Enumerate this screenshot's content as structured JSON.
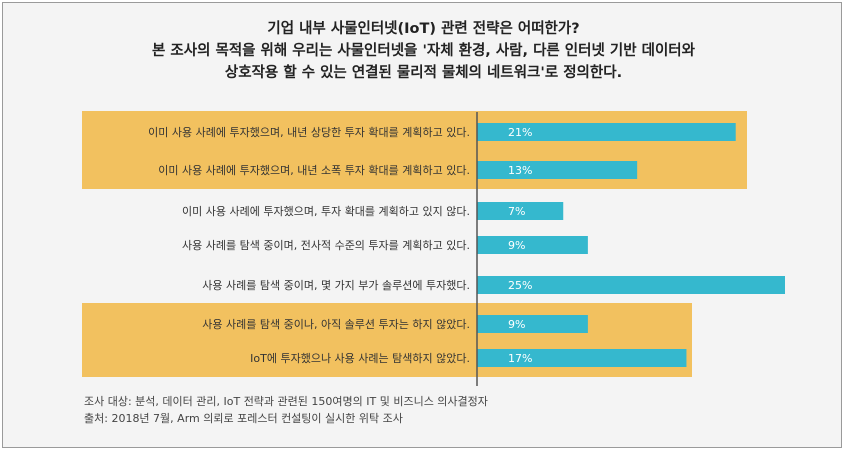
{
  "title_lines": [
    "기업 내부 사물인터넷(IoT) 관련 전략은 어떠한가?",
    "본 조사의 목적을 위해 우리는 사물인터넷을 '자체 환경, 사람, 다른 인터넷 기반 데이터와",
    "상호작용 할 수 있는 연결된 물리적 물체의 네트워크'로 정의한다."
  ],
  "chart_data": {
    "type": "bar",
    "orientation": "horizontal",
    "categories": [
      "이미 사용 사례에 투자했으며, 내년 상당한 투자 확대를 계획하고 있다.",
      "이미 사용 사례에 투자했으며, 내년 소폭 투자 확대를 계획하고 있다.",
      "이미 사용 사례에 투자했으며, 투자 확대를 계획하고 있지 않다.",
      "사용 사례를 탐색 중이며, 전사적 수준의 투자를 계획하고 있다.",
      "사용 사례를 탐색 중이며, 몇 가지 부가 솔루션에 투자했다.",
      "사용 사례를 탐색 중이나, 아직 솔루션 투자는 하지 않았다.",
      "IoT에 투자했으나 사용 사례는 탐색하지 않았다."
    ],
    "values": [
      21,
      13,
      7,
      9,
      25,
      9,
      17
    ],
    "value_labels": [
      "21%",
      "13%",
      "7%",
      "9%",
      "25%",
      "9%",
      "17%"
    ],
    "xlim": [
      0,
      25
    ],
    "highlight_groups": [
      [
        0,
        1
      ],
      [
        5,
        6
      ]
    ],
    "colors": {
      "bar": "#35b8ce",
      "highlight": "#f2c15f",
      "axis": "#555555"
    }
  },
  "footer_lines": [
    "조사 대상: 분석, 데이터 관리, IoT 전략과 관련된 150여명의 IT 및 비즈니스 의사결정자",
    "출처: 2018년 7월, Arm 의뢰로 포레스터 컨설팅이 실시한 위탁 조사"
  ]
}
